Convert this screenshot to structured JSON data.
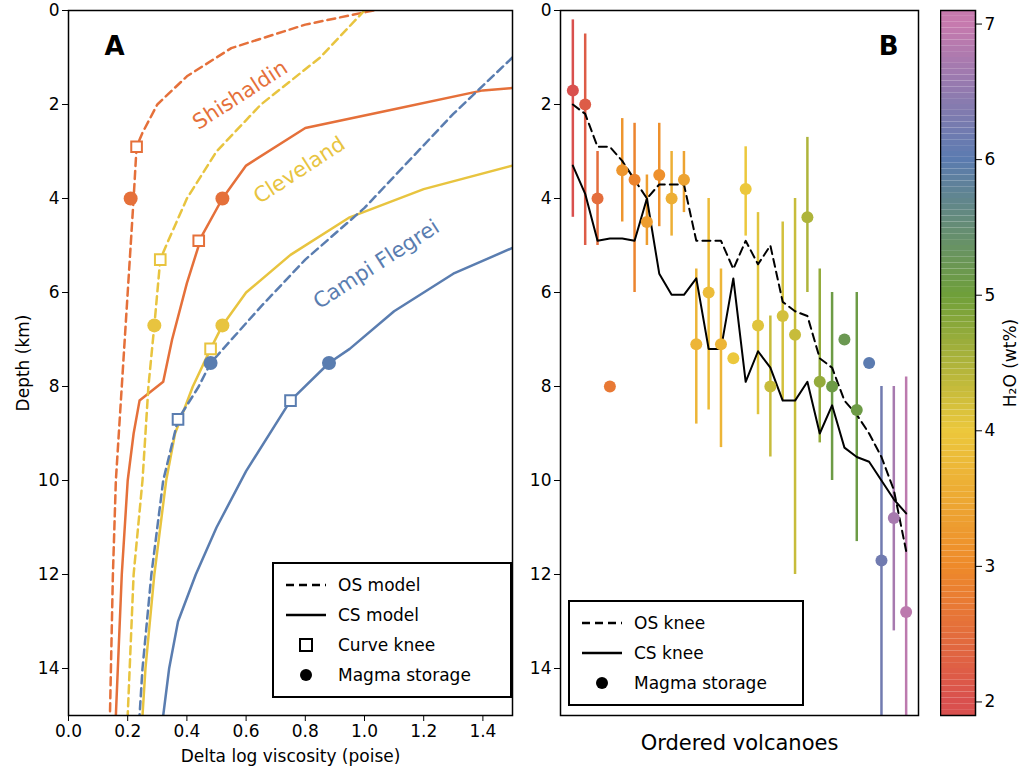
{
  "chart_data": [
    {
      "type": "line",
      "panel_label": "A",
      "x_label": "Delta log viscosity (poise)",
      "y_label": "Depth (km)",
      "xlim": [
        0,
        1.5
      ],
      "xticks": [
        {
          "value": 0,
          "label": "0.0"
        },
        0.2,
        0.4,
        0.6,
        0.8,
        {
          "value": 1,
          "label": "1.0"
        },
        1.2,
        1.4
      ],
      "ylim": [
        15,
        0
      ],
      "yticks": [
        0,
        2,
        4,
        6,
        8,
        10,
        12,
        14
      ],
      "legend": "lower right",
      "styles": [
        {
          "label": "OS model",
          "line_style": "dashed"
        },
        {
          "label": "CS model",
          "line_style": "solid"
        },
        {
          "label": "Curve knee",
          "marker": "square"
        },
        {
          "label": "Magma storage",
          "marker": "circle"
        }
      ],
      "series": [
        {
          "model": "OS model",
          "color": "#e5703a",
          "x": [
            1.03,
            0.8,
            0.55,
            0.4,
            0.3,
            0.25,
            0.23,
            0.22,
            0.2,
            0.18,
            0.16,
            0.15,
            0.14
          ],
          "y": [
            0,
            0.3,
            0.8,
            1.4,
            2.0,
            2.6,
            2.9,
            4,
            6,
            8,
            10,
            12,
            15
          ],
          "knee": {
            "x": 0.23,
            "y": 2.9
          },
          "storage": {
            "x": 0.21,
            "y": 4.0
          }
        },
        {
          "model": "CS model",
          "color": "#e5703a",
          "x": [
            1.5,
            1.4,
            1.1,
            0.8,
            0.6,
            0.52,
            0.45,
            0.4,
            0.35,
            0.32,
            0.24,
            0.22,
            0.2,
            0.18,
            0.16
          ],
          "y": [
            1.65,
            1.7,
            2.1,
            2.5,
            3.3,
            4.0,
            4.8,
            5.8,
            7.0,
            7.9,
            8.3,
            9,
            10,
            12,
            15
          ],
          "knee": {
            "x": 0.44,
            "y": 4.9
          },
          "storage": {
            "x": 0.52,
            "y": 4.0
          }
        },
        {
          "model": "OS model",
          "color": "#e8c43f",
          "x": [
            1.0,
            0.85,
            0.65,
            0.5,
            0.4,
            0.33,
            0.31,
            0.29,
            0.27,
            0.25,
            0.22,
            0.2
          ],
          "y": [
            0,
            1,
            2,
            3,
            4,
            5,
            5.3,
            6.7,
            8,
            10,
            12,
            15
          ],
          "knee": {
            "x": 0.31,
            "y": 5.3
          },
          "storage": {
            "x": 0.29,
            "y": 6.7
          }
        },
        {
          "model": "CS model",
          "color": "#e8c43f",
          "x": [
            1.5,
            1.2,
            0.95,
            0.75,
            0.6,
            0.52,
            0.48,
            0.42,
            0.36,
            0.33,
            0.29,
            0.26,
            0.25
          ],
          "y": [
            3.3,
            3.8,
            4.4,
            5.2,
            6.0,
            6.7,
            7.2,
            8,
            9,
            10,
            12,
            14,
            15
          ],
          "knee": {
            "x": 0.48,
            "y": 7.2
          },
          "storage": {
            "x": 0.52,
            "y": 6.7
          }
        },
        {
          "model": "OS model",
          "color": "#5a7db0",
          "x": [
            1.5,
            1.3,
            1.15,
            1.0,
            0.8,
            0.65,
            0.48,
            0.44,
            0.37,
            0.32,
            0.28,
            0.25,
            0.24
          ],
          "y": [
            1.0,
            2.2,
            3.2,
            4.2,
            5.3,
            6.3,
            7.5,
            8,
            8.7,
            10,
            12,
            14,
            15
          ],
          "knee": {
            "x": 0.37,
            "y": 8.7
          },
          "storage": {
            "x": 0.48,
            "y": 7.5
          }
        },
        {
          "model": "CS model",
          "color": "#5a7db0",
          "x": [
            1.5,
            1.3,
            1.1,
            0.95,
            0.88,
            0.75,
            0.6,
            0.5,
            0.43,
            0.37,
            0.34,
            0.32
          ],
          "y": [
            5.05,
            5.6,
            6.4,
            7.2,
            7.5,
            8.3,
            9.8,
            11,
            12,
            13,
            14,
            15
          ],
          "knee": {
            "x": 0.75,
            "y": 8.3
          },
          "storage": {
            "x": 0.88,
            "y": 7.5
          }
        }
      ],
      "annotations": [
        {
          "text": "Shishaldin",
          "x": 0.58,
          "y": 1.8,
          "color": "#e5703a"
        },
        {
          "text": "Cleveland",
          "x": 0.78,
          "y": 3.4,
          "color": "#e8c43f"
        },
        {
          "text": "Campi Flegrei",
          "x": 1.04,
          "y": 5.4,
          "color": "#5a7db0"
        }
      ]
    },
    {
      "type": "scatter",
      "panel_label": "B",
      "x_label": "Ordered volcanoes",
      "tick_labels": "y",
      "xlim": [
        0,
        29
      ],
      "xticks": [],
      "ylim": [
        15,
        0
      ],
      "yticks": [
        0,
        2,
        4,
        6,
        8,
        10,
        12,
        14
      ],
      "legend": "lower left",
      "x": [
        1,
        2,
        3,
        4,
        5,
        6,
        7,
        8,
        9,
        10,
        11,
        12,
        13,
        14,
        15,
        16,
        17,
        18,
        19,
        20,
        21,
        22,
        23,
        24,
        25,
        26,
        27,
        28
      ],
      "storage_label": "Magma storage",
      "storage": [
        1.7,
        2.0,
        4.0,
        8.0,
        3.4,
        3.6,
        4.5,
        3.5,
        4.0,
        3.6,
        7.1,
        6.0,
        7.1,
        7.4,
        3.8,
        6.7,
        8.0,
        6.5,
        6.9,
        4.4,
        7.9,
        8.0,
        7.0,
        8.5,
        7.5,
        11.7,
        10.8,
        12.8
      ],
      "error_low": [
        0.2,
        0.5,
        3.0,
        null,
        2.3,
        2.4,
        3.5,
        2.4,
        3.0,
        3.0,
        5.5,
        4.0,
        5.5,
        null,
        2.9,
        4.3,
        6.5,
        4.5,
        4.0,
        2.7,
        5.5,
        6.0,
        null,
        6.0,
        null,
        8.0,
        8.0,
        7.8
      ],
      "error_high": [
        4.4,
        5.0,
        5.0,
        null,
        4.5,
        6.0,
        5.0,
        4.6,
        4.8,
        4.3,
        8.8,
        8.5,
        9.3,
        null,
        4.8,
        8.6,
        9.5,
        8.3,
        12.0,
        6.0,
        9.2,
        10.0,
        null,
        11.3,
        null,
        15.0,
        13.2,
        15.0
      ],
      "h2o": [
        2.0,
        2.2,
        2.5,
        2.7,
        3.2,
        2.9,
        3.3,
        3.1,
        3.6,
        3.4,
        3.7,
        3.8,
        3.7,
        4.0,
        4.0,
        4.1,
        4.3,
        4.2,
        4.3,
        4.5,
        4.7,
        5.1,
        5.2,
        5.1,
        6.0,
        6.2,
        6.7,
        6.9
      ],
      "series": [
        {
          "name": "OS knee",
          "line_style": "dashed",
          "color": "#000000",
          "values": [
            2.0,
            2.2,
            2.9,
            2.9,
            3.2,
            3.6,
            4.0,
            3.7,
            3.7,
            3.7,
            4.9,
            4.9,
            4.9,
            5.5,
            4.9,
            5.4,
            5.0,
            6.2,
            6.4,
            6.5,
            7.4,
            7.6,
            8.3,
            8.6,
            9.0,
            9.5,
            10.2,
            11.5
          ]
        },
        {
          "name": "CS knee",
          "line_style": "solid",
          "color": "#000000",
          "values": [
            3.3,
            3.9,
            4.9,
            4.85,
            4.85,
            4.9,
            4.0,
            5.6,
            6.05,
            6.05,
            5.7,
            7.2,
            7.2,
            5.7,
            7.9,
            7.25,
            7.6,
            8.3,
            8.3,
            7.9,
            9.0,
            8.4,
            9.3,
            9.5,
            9.6,
            10.0,
            10.4,
            10.7
          ]
        }
      ],
      "colorbar": {
        "label": "H₂O (wt%)",
        "lim": [
          1.9,
          7.1
        ],
        "ticks": [
          2,
          3,
          4,
          5,
          6,
          7
        ]
      }
    }
  ]
}
